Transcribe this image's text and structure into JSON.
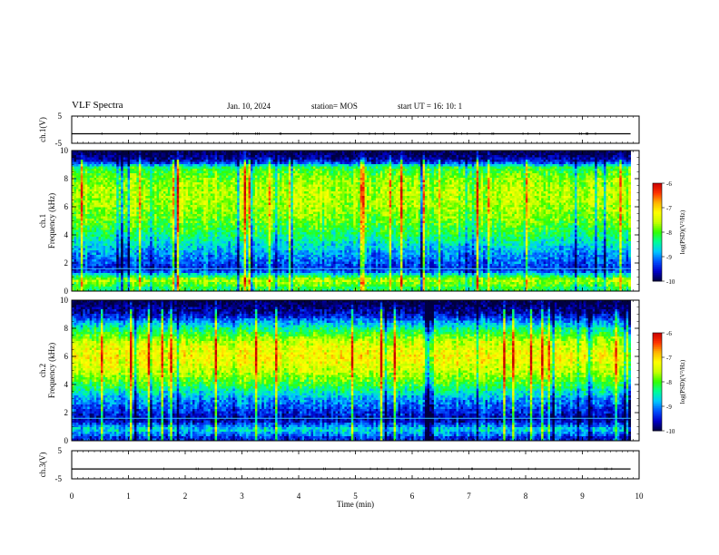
{
  "header": {
    "title": "VLF Spectra",
    "date": "Jan. 10, 2024",
    "station": "station= MOS",
    "start": "start  UT  =   16: 10: 1"
  },
  "chart_data": [
    {
      "type": "line",
      "panel": "ch.1 waveform",
      "ylabel": "ch.1(V)",
      "ylim": [
        -5,
        5
      ],
      "yticks": [
        "5",
        "-5"
      ],
      "xlim": [
        0,
        10
      ],
      "series": [
        {
          "x": [
            0,
            9.85
          ],
          "values": [
            -1.5,
            -1.5
          ]
        }
      ],
      "color": "#000000"
    },
    {
      "type": "heatmap",
      "panel": "ch.1 spectrogram",
      "ylabel": "ch.1\nFrequency (kHz)",
      "ylim": [
        0,
        10
      ],
      "yticks": [
        "0",
        "2",
        "4",
        "6",
        "8",
        "10"
      ],
      "xlim": [
        0,
        10
      ],
      "data_end_min": 9.85,
      "colorbar": {
        "label": "log(PSD)(V²/Hz)",
        "range": [
          -10,
          -6
        ],
        "ticks": [
          "-6",
          "-7",
          "-8",
          "-9",
          "-10"
        ]
      },
      "frequency_profile_log_psd": [
        [
          0.2,
          -8.2
        ],
        [
          0.8,
          -7.6
        ],
        [
          1.4,
          -9.2
        ],
        [
          1.6,
          -9.5
        ],
        [
          1.8,
          -9.3
        ],
        [
          3.0,
          -8.8
        ],
        [
          4.0,
          -8.3
        ],
        [
          5.0,
          -7.9
        ],
        [
          6.0,
          -7.7
        ],
        [
          7.0,
          -7.6
        ],
        [
          8.0,
          -7.8
        ],
        [
          8.8,
          -8.2
        ],
        [
          9.2,
          -9.5
        ],
        [
          9.8,
          -10.0
        ]
      ]
    },
    {
      "type": "heatmap",
      "panel": "ch.2 spectrogram",
      "ylabel": "ch.2\nFrequency (kHz)",
      "ylim": [
        0,
        10
      ],
      "yticks": [
        "0",
        "2",
        "4",
        "6",
        "8",
        "10"
      ],
      "xlim": [
        0,
        10
      ],
      "data_end_min": 9.85,
      "colorbar": {
        "label": "log(PSD)(V²/Hz)",
        "range": [
          -10,
          -6
        ],
        "ticks": [
          "-6",
          "-7",
          "-8",
          "-9",
          "-10"
        ]
      },
      "frequency_profile_log_psd": [
        [
          0.2,
          -9.4
        ],
        [
          0.8,
          -8.6
        ],
        [
          1.4,
          -9.6
        ],
        [
          1.6,
          -9.7
        ],
        [
          1.8,
          -9.5
        ],
        [
          3.0,
          -8.9
        ],
        [
          4.0,
          -8.1
        ],
        [
          5.0,
          -7.5
        ],
        [
          6.0,
          -7.2
        ],
        [
          7.0,
          -7.5
        ],
        [
          8.0,
          -8.4
        ],
        [
          9.0,
          -9.6
        ],
        [
          9.8,
          -10.0
        ]
      ]
    },
    {
      "type": "line",
      "panel": "ch.3 waveform",
      "ylabel": "ch.3(V)",
      "ylim": [
        -5,
        5
      ],
      "yticks": [
        "5",
        "-5"
      ],
      "xlim": [
        0,
        10
      ],
      "series": [
        {
          "x": [
            0,
            9.85
          ],
          "values": [
            -1.5,
            -1.5
          ]
        }
      ],
      "color": "#000000",
      "xlabel": "Time  (min)",
      "xticks": [
        "0",
        "1",
        "2",
        "3",
        "4",
        "5",
        "6",
        "7",
        "8",
        "9",
        "10"
      ]
    }
  ],
  "colormap": [
    "#000040",
    "#0000c8",
    "#0050ff",
    "#00c8ff",
    "#00ff96",
    "#32ff00",
    "#c8ff00",
    "#ffff00",
    "#ffb400",
    "#ff3200",
    "#c80000",
    "#ffffff"
  ]
}
